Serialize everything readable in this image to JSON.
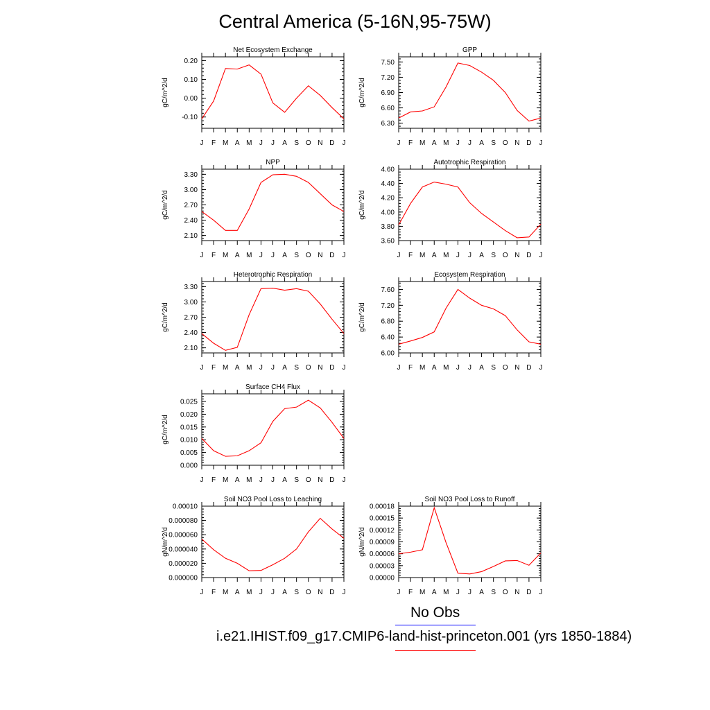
{
  "title": "Central America (5-16N,95-75W)",
  "colors": {
    "model": "#ff0000",
    "obs": "#0000ff",
    "axis": "#000000"
  },
  "legend": {
    "obs_label": "No Obs",
    "model_label": "i.e21.IHIST.f09_g17.CMIP6-land-hist-princeton.001 (yrs 1850-1884)"
  },
  "chart_data": [
    {
      "type": "line",
      "title": "Net Ecosystem Exchange",
      "ylabel": "gC/m^2/d",
      "categories": [
        "J",
        "F",
        "M",
        "A",
        "M",
        "J",
        "J",
        "A",
        "S",
        "O",
        "N",
        "D",
        "J"
      ],
      "ylim": [
        -0.16,
        0.22
      ],
      "yticks": [
        "-0.10",
        "0.00",
        "0.10",
        "0.20"
      ],
      "ytick_values": [
        -0.1,
        0.0,
        0.1,
        0.2
      ],
      "series": [
        {
          "values": [
            -0.11,
            -0.015,
            0.158,
            0.155,
            0.177,
            0.128,
            -0.025,
            -0.075,
            0.0,
            0.066,
            0.015,
            -0.05,
            -0.11
          ]
        }
      ]
    },
    {
      "type": "line",
      "title": "GPP",
      "ylabel": "gC/m^2/d",
      "categories": [
        "J",
        "F",
        "M",
        "A",
        "M",
        "J",
        "J",
        "A",
        "S",
        "O",
        "N",
        "D",
        "J"
      ],
      "ylim": [
        6.2,
        7.6
      ],
      "yticks": [
        "6.30",
        "6.60",
        "6.90",
        "7.20",
        "7.50"
      ],
      "ytick_values": [
        6.3,
        6.6,
        6.9,
        7.2,
        7.5
      ],
      "series": [
        {
          "values": [
            6.4,
            6.52,
            6.54,
            6.62,
            7.01,
            7.48,
            7.43,
            7.3,
            7.14,
            6.9,
            6.55,
            6.34,
            6.4
          ]
        }
      ]
    },
    {
      "type": "line",
      "title": "NPP",
      "ylabel": "gC/m^2/d",
      "categories": [
        "J",
        "F",
        "M",
        "A",
        "M",
        "J",
        "J",
        "A",
        "S",
        "O",
        "N",
        "D",
        "J"
      ],
      "ylim": [
        2.0,
        3.4
      ],
      "yticks": [
        "2.10",
        "2.40",
        "2.70",
        "3.00",
        "3.30"
      ],
      "ytick_values": [
        2.1,
        2.4,
        2.7,
        3.0,
        3.3
      ],
      "series": [
        {
          "values": [
            2.57,
            2.4,
            2.2,
            2.2,
            2.62,
            3.14,
            3.29,
            3.3,
            3.26,
            3.14,
            2.92,
            2.7,
            2.57
          ]
        }
      ]
    },
    {
      "type": "line",
      "title": "Autotrophic Respiration",
      "ylabel": "gC/m^2/d",
      "categories": [
        "J",
        "F",
        "M",
        "A",
        "M",
        "J",
        "J",
        "A",
        "S",
        "O",
        "N",
        "D",
        "J"
      ],
      "ylim": [
        3.6,
        4.6
      ],
      "yticks": [
        "3.60",
        "3.80",
        "4.00",
        "4.20",
        "4.40",
        "4.60"
      ],
      "ytick_values": [
        3.6,
        3.8,
        4.0,
        4.2,
        4.4,
        4.6
      ],
      "series": [
        {
          "values": [
            3.82,
            4.12,
            4.35,
            4.42,
            4.39,
            4.35,
            4.13,
            3.98,
            3.86,
            3.74,
            3.64,
            3.65,
            3.83
          ]
        }
      ]
    },
    {
      "type": "line",
      "title": "Heterotrophic Respiration",
      "ylabel": "gC/m^2/d",
      "categories": [
        "J",
        "F",
        "M",
        "A",
        "M",
        "J",
        "J",
        "A",
        "S",
        "O",
        "N",
        "D",
        "J"
      ],
      "ylim": [
        2.0,
        3.4
      ],
      "yticks": [
        "2.10",
        "2.40",
        "2.70",
        "3.00",
        "3.30"
      ],
      "ytick_values": [
        2.1,
        2.4,
        2.7,
        3.0,
        3.3
      ],
      "series": [
        {
          "values": [
            2.38,
            2.19,
            2.05,
            2.11,
            2.75,
            3.26,
            3.27,
            3.23,
            3.26,
            3.21,
            2.96,
            2.66,
            2.38
          ]
        }
      ]
    },
    {
      "type": "line",
      "title": "Ecosystem Respiration",
      "ylabel": "gC/m^2/d",
      "categories": [
        "J",
        "F",
        "M",
        "A",
        "M",
        "J",
        "J",
        "A",
        "S",
        "O",
        "N",
        "D",
        "J"
      ],
      "ylim": [
        6.0,
        7.8
      ],
      "yticks": [
        "6.00",
        "6.40",
        "6.80",
        "7.20",
        "7.60"
      ],
      "ytick_values": [
        6.0,
        6.4,
        6.8,
        7.2,
        7.6
      ],
      "series": [
        {
          "values": [
            6.22,
            6.3,
            6.39,
            6.53,
            7.13,
            7.6,
            7.38,
            7.2,
            7.11,
            6.94,
            6.58,
            6.28,
            6.22
          ]
        }
      ]
    },
    {
      "type": "line",
      "title": "Surface CH4 Flux",
      "ylabel": "gC/m^2/d",
      "categories": [
        "J",
        "F",
        "M",
        "A",
        "M",
        "J",
        "J",
        "A",
        "S",
        "O",
        "N",
        "D",
        "J"
      ],
      "ylim": [
        0.0,
        0.028
      ],
      "yticks": [
        "0.000",
        "0.005",
        "0.010",
        "0.015",
        "0.020",
        "0.025"
      ],
      "ytick_values": [
        0.0,
        0.005,
        0.01,
        0.015,
        0.02,
        0.025
      ],
      "series": [
        {
          "values": [
            0.0105,
            0.0057,
            0.0035,
            0.0037,
            0.0057,
            0.0088,
            0.0172,
            0.0222,
            0.0228,
            0.0255,
            0.0225,
            0.0168,
            0.0105
          ]
        }
      ]
    },
    {
      "type": "line",
      "title": "Soil NO3 Pool Loss to Leaching",
      "ylabel": "gN/m^2/d",
      "categories": [
        "J",
        "F",
        "M",
        "A",
        "M",
        "J",
        "J",
        "A",
        "S",
        "O",
        "N",
        "D",
        "J"
      ],
      "ylim": [
        0.0,
        0.0001
      ],
      "yticks": [
        "0.000000",
        "0.000020",
        "0.000040",
        "0.000060",
        "0.000080",
        "0.00010"
      ],
      "ytick_values": [
        0.0,
        2e-05,
        4e-05,
        6e-05,
        8e-05,
        0.0001
      ],
      "series": [
        {
          "values": [
            5.4e-05,
            3.9e-05,
            2.7e-05,
            2e-05,
            9.5e-06,
            1e-05,
            1.8e-05,
            2.7e-05,
            4e-05,
            6.4e-05,
            8.3e-05,
            6.8e-05,
            5.5e-05
          ]
        }
      ]
    },
    {
      "type": "line",
      "title": "Soil NO3 Pool Loss to Runoff",
      "ylabel": "gN/m^2/d",
      "categories": [
        "J",
        "F",
        "M",
        "A",
        "M",
        "J",
        "J",
        "A",
        "S",
        "O",
        "N",
        "D",
        "J"
      ],
      "ylim": [
        0.0,
        0.00018
      ],
      "yticks": [
        "0.00000",
        "0.00003",
        "0.00006",
        "0.00009",
        "0.00012",
        "0.00015",
        "0.00018"
      ],
      "ytick_values": [
        0.0,
        3e-05,
        6e-05,
        9e-05,
        0.00012,
        0.00015,
        0.00018
      ],
      "series": [
        {
          "values": [
            6e-05,
            6.4e-05,
            7e-05,
            0.000176,
            8.8e-05,
            1.1e-05,
            9e-06,
            1.5e-05,
            2.8e-05,
            4.2e-05,
            4.3e-05,
            3.1e-05,
            6.2e-05
          ]
        }
      ]
    }
  ]
}
